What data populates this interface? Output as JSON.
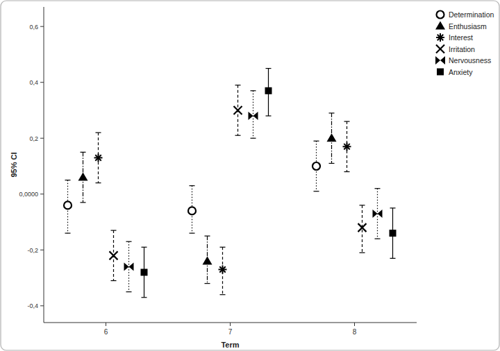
{
  "chart_data": {
    "type": "errorbar",
    "x_label": "Term",
    "y_label": "95% CI",
    "categories": [
      "6",
      "7",
      "8"
    ],
    "ylim": [
      -0.46,
      0.67
    ],
    "yticks": [
      {
        "value": -0.4,
        "label": "-0,4"
      },
      {
        "value": -0.2,
        "label": "-0,2"
      },
      {
        "value": 0,
        "label": "0,0000"
      },
      {
        "value": 0.2,
        "label": "0,2"
      },
      {
        "value": 0.4,
        "label": "0,4"
      },
      {
        "value": 0.6,
        "label": "0,6"
      }
    ],
    "grid": false,
    "legend": "top-right",
    "series": [
      {
        "name": "Determination",
        "color": "#000000",
        "marker": "circle-open",
        "line_style": "dotted",
        "values": [
          -0.04,
          -0.06,
          0.1
        ],
        "ci_lower": [
          -0.14,
          -0.14,
          0.01
        ],
        "ci_upper": [
          0.05,
          0.03,
          0.19
        ]
      },
      {
        "name": "Enthusiasm",
        "color": "#000000",
        "marker": "triangle",
        "line_style": "dashdot",
        "values": [
          0.06,
          -0.24,
          0.2
        ],
        "ci_lower": [
          -0.03,
          -0.32,
          0.11
        ],
        "ci_upper": [
          0.15,
          -0.15,
          0.29
        ]
      },
      {
        "name": "Interest",
        "color": "#000000",
        "marker": "asterisk",
        "line_style": "dashed",
        "values": [
          0.13,
          -0.27,
          0.17
        ],
        "ci_lower": [
          0.04,
          -0.36,
          0.08
        ],
        "ci_upper": [
          0.22,
          -0.19,
          0.26
        ]
      },
      {
        "name": "Irritation",
        "color": "#000000",
        "marker": "x",
        "line_style": "dashed",
        "values": [
          -0.22,
          0.3,
          -0.12
        ],
        "ci_lower": [
          -0.31,
          0.21,
          -0.21
        ],
        "ci_upper": [
          -0.13,
          0.39,
          -0.04
        ]
      },
      {
        "name": "Nervousness",
        "color": "#000000",
        "marker": "bowtie",
        "line_style": "dotted",
        "values": [
          -0.26,
          0.28,
          -0.07
        ],
        "ci_lower": [
          -0.35,
          0.2,
          -0.16
        ],
        "ci_upper": [
          -0.17,
          0.37,
          0.02
        ]
      },
      {
        "name": "Anxiety",
        "color": "#000000",
        "marker": "square",
        "line_style": "solid",
        "values": [
          -0.28,
          0.37,
          -0.14
        ],
        "ci_lower": [
          -0.37,
          0.28,
          -0.23
        ],
        "ci_upper": [
          -0.19,
          0.45,
          -0.05
        ]
      }
    ]
  }
}
